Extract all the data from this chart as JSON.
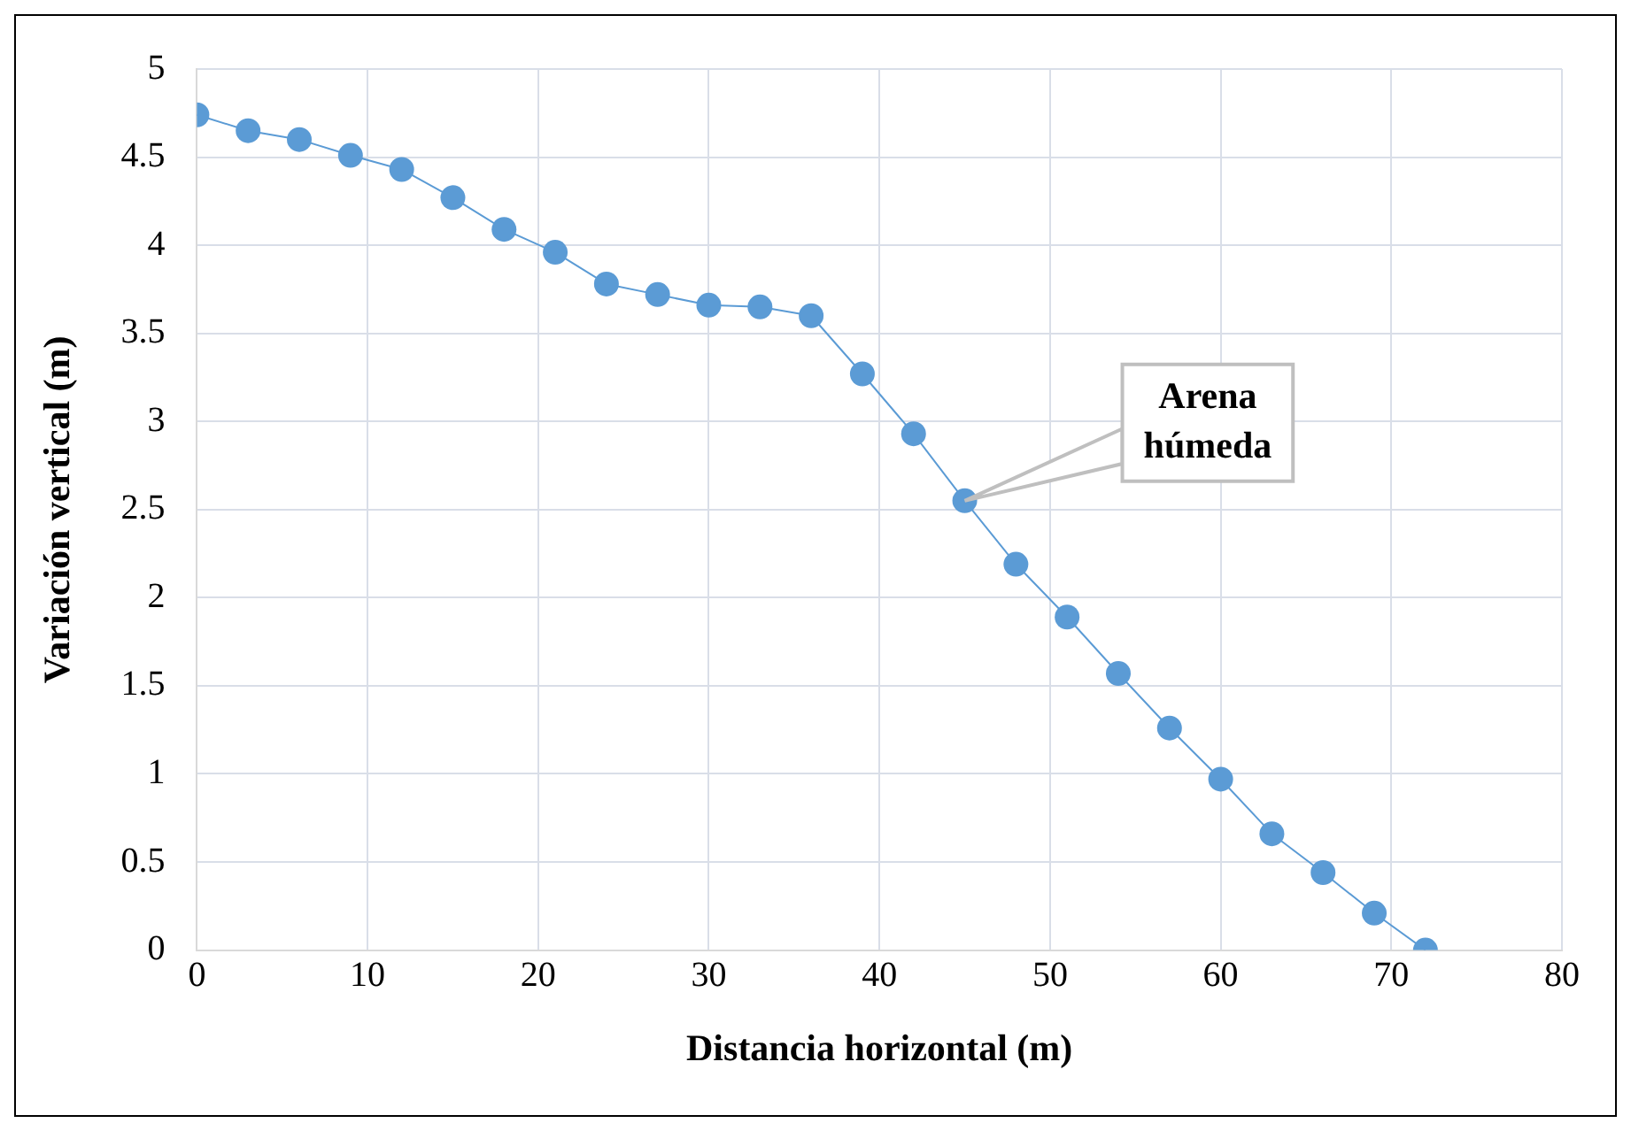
{
  "chart_data": {
    "type": "line",
    "xlabel": "Distancia horizontal (m)",
    "ylabel": "Variación vertical (m)",
    "x": [
      0,
      3,
      6,
      9,
      12,
      15,
      18,
      21,
      24,
      27,
      30,
      33,
      36,
      39,
      42,
      45,
      48,
      51,
      54,
      57,
      60,
      63,
      66,
      69,
      72
    ],
    "series": [
      {
        "color": "#5b9bd5",
        "values": [
          4.74,
          4.65,
          4.6,
          4.51,
          4.43,
          4.27,
          4.09,
          3.96,
          3.78,
          3.72,
          3.66,
          3.65,
          3.6,
          3.27,
          2.93,
          2.55,
          2.19,
          1.89,
          1.57,
          1.26,
          0.97,
          0.66,
          0.44,
          0.21,
          0
        ]
      }
    ],
    "xlim": [
      0,
      80
    ],
    "xticks": [
      0,
      10,
      20,
      30,
      40,
      50,
      60,
      70,
      80
    ],
    "ylim": [
      0,
      5
    ],
    "yticks": [
      0,
      0.5,
      1,
      1.5,
      2,
      2.5,
      3,
      3.5,
      4,
      4.5,
      5
    ],
    "grid": true,
    "legend": false,
    "marker": "circle",
    "line_style": "solid",
    "annotations": [
      {
        "text": "Arena\nhúmeda",
        "x": 45,
        "y": 2.55
      }
    ]
  }
}
